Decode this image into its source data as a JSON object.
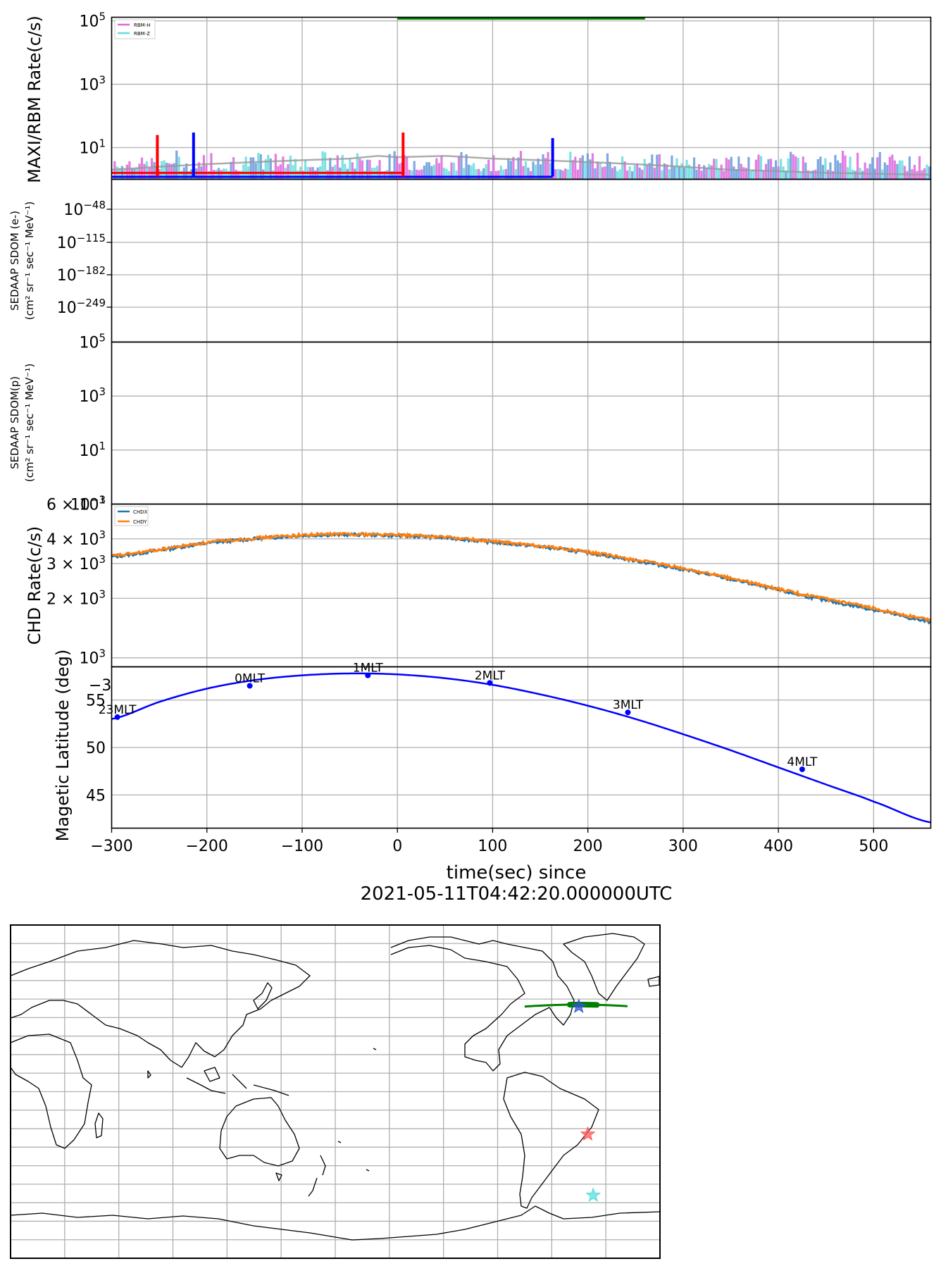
{
  "chart_data": [
    {
      "panel": "maxi_rbm",
      "type": "bar",
      "ylabel": "MAXI/RBM Rate(c/s)",
      "yscale": "log",
      "ylim": [
        1,
        130000
      ],
      "yticks": [
        {
          "label": "10",
          "sup": "5"
        },
        {
          "label": "10",
          "sup": "3"
        },
        {
          "label": "10",
          "sup": "1"
        }
      ],
      "yticks_values": [
        100000,
        1000,
        10
      ],
      "legend": {
        "position": "top-left",
        "entries": [
          "RBM-H",
          "RBM-Z"
        ]
      },
      "series": [
        {
          "name": "RBM-H",
          "color": "#dd66dd",
          "note": "noisy bars 1-8 c/s"
        },
        {
          "name": "RBM-Z",
          "color": "#66dddd",
          "note": "noisy bars 1-6 c/s"
        }
      ],
      "green_segment": {
        "x": [
          0,
          260
        ],
        "y": 120000,
        "color": "#008000"
      },
      "gray_curve": {
        "x": [
          -300,
          -250,
          -200,
          -150,
          -100,
          -50,
          -20,
          0,
          50,
          100,
          150,
          200,
          250,
          300,
          350,
          400,
          450,
          500,
          560
        ],
        "y": [
          2.0,
          2.5,
          3.0,
          3.5,
          4.0,
          4.5,
          5.5,
          5.0,
          5.5,
          4.5,
          4.0,
          3.5,
          3.0,
          2.5,
          2.0,
          1.8,
          1.6,
          1.5,
          1.4
        ],
        "color": "#aaaaaa"
      },
      "spikes": [
        {
          "x": -252,
          "y": 25,
          "color": "#ff0000"
        },
        {
          "x": -214,
          "y": 30,
          "color": "#0000ff"
        },
        {
          "x": 6,
          "y": 30,
          "color": "#ff0000"
        },
        {
          "x": 163,
          "y": 20,
          "color": "#0000ff"
        }
      ],
      "step_lines": [
        {
          "x": [
            -300,
            6
          ],
          "y": 1.6,
          "color": "#ff0000"
        },
        {
          "x": [
            -300,
            163
          ],
          "y": 1.2,
          "color": "#0000ff"
        }
      ]
    },
    {
      "panel": "sedaap_e",
      "type": "line",
      "ylabel_lines": [
        "SEDAAP SDOM (e-)",
        "(cm² sr⁻¹ sec⁻¹ MeV⁻¹)"
      ],
      "yscale": "log",
      "yticks": [
        {
          "label": "10",
          "sup": "−48"
        },
        {
          "label": "10",
          "sup": "−115"
        },
        {
          "label": "10",
          "sup": "−182"
        },
        {
          "label": "10",
          "sup": "−249"
        }
      ],
      "series": []
    },
    {
      "panel": "sedaap_p",
      "type": "line",
      "ylabel_lines": [
        "SEDAAP SDOM(p)",
        "(cm² sr⁻¹ sec⁻¹ MeV⁻¹)"
      ],
      "yscale": "log",
      "ylim": [
        0.1,
        100000
      ],
      "yticks": [
        {
          "label": "10",
          "sup": "5"
        },
        {
          "label": "10",
          "sup": "3"
        },
        {
          "label": "10",
          "sup": "1"
        },
        {
          "label": "10",
          "sup": "−1"
        }
      ],
      "series": []
    },
    {
      "panel": "chd",
      "type": "line",
      "ylabel": "CHD Rate(c/s)",
      "yscale": "log",
      "ylim": [
        900,
        6000
      ],
      "yticks": [
        {
          "label": "6 × 10",
          "sup": "3",
          "value": 6000
        },
        {
          "label": "4 × 10",
          "sup": "3",
          "value": 4000
        },
        {
          "label": "3 × 10",
          "sup": "3",
          "value": 3000
        },
        {
          "label": "2 × 10",
          "sup": "3",
          "value": 2000
        },
        {
          "label": "10",
          "sup": "3",
          "value": 1000
        }
      ],
      "legend": {
        "position": "top-left",
        "entries": [
          "CHDX",
          "CHDY"
        ]
      },
      "series": [
        {
          "name": "CHDX",
          "color": "#1f77b4",
          "x": [
            -300,
            -250,
            -200,
            -150,
            -100,
            -50,
            0,
            50,
            100,
            150,
            200,
            250,
            300,
            350,
            400,
            450,
            500,
            560
          ],
          "y": [
            3250,
            3500,
            3800,
            4000,
            4150,
            4200,
            4150,
            4050,
            3850,
            3650,
            3400,
            3100,
            2800,
            2500,
            2200,
            1950,
            1750,
            1520
          ]
        },
        {
          "name": "CHDY",
          "color": "#ff7f0e",
          "x": [
            -300,
            -250,
            -200,
            -150,
            -100,
            -50,
            0,
            50,
            100,
            150,
            200,
            250,
            300,
            350,
            400,
            450,
            500,
            560
          ],
          "y": [
            3280,
            3530,
            3830,
            4030,
            4180,
            4230,
            4180,
            4080,
            3880,
            3680,
            3430,
            3130,
            2830,
            2530,
            2230,
            1980,
            1780,
            1560
          ]
        }
      ]
    },
    {
      "panel": "maglat",
      "type": "line",
      "ylabel": "Magetic Latitude  (deg)",
      "ylim": [
        41.5,
        58.5
      ],
      "yticks": [
        {
          "label": "45",
          "value": 45
        },
        {
          "label": "50",
          "value": 50
        },
        {
          "label": "55",
          "value": 55
        }
      ],
      "clipped_tick": "−3",
      "series": [
        {
          "color": "#0000ff",
          "x": [
            -300,
            -250,
            -200,
            -150,
            -100,
            -50,
            0,
            50,
            100,
            150,
            200,
            250,
            300,
            350,
            400,
            450,
            500,
            560
          ],
          "y": [
            53.0,
            54.8,
            56.2,
            57.1,
            57.6,
            57.8,
            57.7,
            57.3,
            56.6,
            55.6,
            54.4,
            53.0,
            51.4,
            49.7,
            47.9,
            46.1,
            44.3,
            42.1
          ]
        }
      ],
      "mlt_markers": [
        {
          "x": -294,
          "y": 53.2,
          "label": "23MLT"
        },
        {
          "x": -155,
          "y": 56.5,
          "label": "0MLT"
        },
        {
          "x": -31,
          "y": 57.6,
          "label": "1MLT"
        },
        {
          "x": 97,
          "y": 56.8,
          "label": "2MLT"
        },
        {
          "x": 242,
          "y": 53.7,
          "label": "3MLT"
        },
        {
          "x": 425,
          "y": 47.7,
          "label": "4MLT"
        }
      ]
    }
  ],
  "x_axis": {
    "xlim": [
      -300,
      560
    ],
    "ticks": [
      "−300",
      "−200",
      "−100",
      "0",
      "100",
      "200",
      "300",
      "400",
      "500"
    ],
    "tick_values": [
      -300,
      -200,
      -100,
      0,
      100,
      200,
      300,
      400,
      500
    ],
    "label_line1": "time(sec) since",
    "label_line2": "2021-05-11T04:42:20.000000UTC"
  },
  "map": {
    "type": "map",
    "projection": "plate carree, central longitude 180",
    "track": {
      "color": "#008000",
      "lon_range": [
        -75,
        -18
      ],
      "lat_approx": 44
    },
    "stars": [
      {
        "color": "#3355dd",
        "lon": -45,
        "lat": 46
      },
      {
        "color": "#ff5555",
        "lon": -40,
        "lat": -23
      },
      {
        "color": "#55dddd",
        "lon": -37,
        "lat": -56
      }
    ]
  }
}
